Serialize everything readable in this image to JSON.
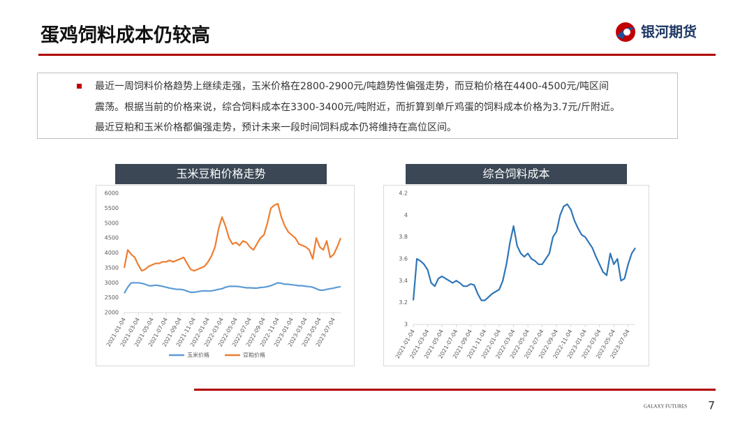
{
  "header": {
    "title": "蛋鸡饲料成本仍较高",
    "logo": "银河期货"
  },
  "bullet_lines": [
    "最近一周饲料价格趋势上继续走强，玉米价格在2800-2900元/吨趋势性偏强走势，而豆粕价格在4400-4500元/吨区间",
    "震荡。根据当前的价格来说，综合饲料成本在3300-3400元/吨附近，而折算到单斤鸡蛋的饲料成本价格为3.7元/斤附近。",
    "最近豆粕和玉米价格都偏强走势，预计未来一段时间饲料成本仍将维持在高位区间。"
  ],
  "footer": "GALAXY FUTURES",
  "page_number": "7",
  "chart_data": [
    {
      "type": "line",
      "title": "玉米豆粕价格走势",
      "categories": [
        "2021-01-04",
        null,
        null,
        null,
        "2021-03-04",
        null,
        null,
        null,
        "2021-05-04",
        null,
        null,
        null,
        "2021-07-04",
        null,
        null,
        null,
        "2021-09-04",
        null,
        null,
        null,
        "2021-11-04",
        null,
        null,
        null,
        "2022-01-04",
        null,
        null,
        null,
        "2022-03-04",
        null,
        null,
        null,
        "2022-05-04",
        null,
        null,
        null,
        "2022-07-04",
        null,
        null,
        null,
        "2022-09-04",
        null,
        null,
        null,
        "2022-11-04",
        null,
        null,
        null,
        "2023-01-04",
        null,
        null,
        null,
        "2023-03-04",
        null,
        null,
        null,
        "2023-05-04",
        null,
        null,
        null,
        "2023-07-04",
        null,
        null
      ],
      "series": [
        {
          "name": "玉米价格",
          "color": "#5b9bd5",
          "values": [
            2650,
            2850,
            3000,
            3000,
            3000,
            2980,
            2950,
            2900,
            2900,
            2920,
            2900,
            2880,
            2850,
            2820,
            2800,
            2780,
            2780,
            2760,
            2720,
            2680,
            2680,
            2700,
            2720,
            2730,
            2720,
            2730,
            2750,
            2780,
            2800,
            2850,
            2880,
            2880,
            2880,
            2870,
            2850,
            2830,
            2830,
            2820,
            2820,
            2840,
            2850,
            2870,
            2900,
            2950,
            3000,
            2980,
            2950,
            2950,
            2930,
            2920,
            2900,
            2900,
            2880,
            2870,
            2850,
            2800,
            2750,
            2750,
            2780,
            2800,
            2820,
            2850,
            2870
          ]
        },
        {
          "name": "豆粕价格",
          "color": "#ed7d31",
          "values": [
            3500,
            4100,
            3950,
            3850,
            3600,
            3400,
            3450,
            3550,
            3600,
            3650,
            3650,
            3700,
            3700,
            3750,
            3700,
            3750,
            3800,
            3850,
            3650,
            3450,
            3400,
            3450,
            3500,
            3550,
            3700,
            3900,
            4200,
            4800,
            5200,
            4900,
            4500,
            4300,
            4350,
            4250,
            4400,
            4350,
            4200,
            4100,
            4300,
            4500,
            4600,
            5000,
            5500,
            5600,
            5650,
            5200,
            4900,
            4700,
            4600,
            4500,
            4300,
            4250,
            4200,
            4100,
            3800,
            4500,
            4200,
            4100,
            4400,
            3850,
            3950,
            4200,
            4500
          ]
        }
      ],
      "ylim": [
        2000,
        6000
      ],
      "yticks": [
        2000,
        2500,
        3000,
        3500,
        4000,
        4500,
        5000,
        5500,
        6000
      ],
      "legend": "bottom"
    },
    {
      "type": "line",
      "title": "综合饲料成本",
      "categories": [
        "2021-01-04",
        null,
        null,
        null,
        "2021-03-04",
        null,
        null,
        null,
        "2021-05-04",
        null,
        null,
        null,
        "2021-07-04",
        null,
        null,
        null,
        "2021-09-04",
        null,
        null,
        null,
        "2021-11-04",
        null,
        null,
        null,
        "2022-01-04",
        null,
        null,
        null,
        "2022-03-04",
        null,
        null,
        null,
        "2022-05-04",
        null,
        null,
        null,
        "2022-07-04",
        null,
        null,
        null,
        "2022-09-04",
        null,
        null,
        null,
        "2022-11-04",
        null,
        null,
        null,
        "2023-01-04",
        null,
        null,
        null,
        "2023-03-04",
        null,
        null,
        null,
        "2023-05-04",
        null,
        null,
        null,
        "2023-07-04",
        null,
        null
      ],
      "series": [
        {
          "color": "#2e75b6",
          "values": [
            3.22,
            3.6,
            3.58,
            3.55,
            3.5,
            3.38,
            3.35,
            3.42,
            3.44,
            3.42,
            3.4,
            3.38,
            3.4,
            3.38,
            3.35,
            3.35,
            3.37,
            3.36,
            3.28,
            3.22,
            3.22,
            3.25,
            3.28,
            3.3,
            3.32,
            3.4,
            3.55,
            3.75,
            3.9,
            3.72,
            3.65,
            3.62,
            3.65,
            3.6,
            3.58,
            3.55,
            3.55,
            3.6,
            3.65,
            3.8,
            3.85,
            4.0,
            4.08,
            4.1,
            4.05,
            3.95,
            3.88,
            3.82,
            3.8,
            3.75,
            3.7,
            3.62,
            3.55,
            3.48,
            3.45,
            3.65,
            3.55,
            3.6,
            3.4,
            3.42,
            3.55,
            3.65,
            3.7
          ]
        }
      ],
      "ylim": [
        3,
        4.2
      ],
      "yticks": [
        3,
        {
          "value": 3.2,
          "label": "3.2"
        },
        {
          "value": 3.4,
          "label": "3.4"
        },
        {
          "value": 3.6,
          "label": "3.6"
        },
        {
          "value": 3.8,
          "label": "3.8"
        },
        4,
        {
          "value": 4.2,
          "label": "4.2"
        }
      ]
    }
  ]
}
